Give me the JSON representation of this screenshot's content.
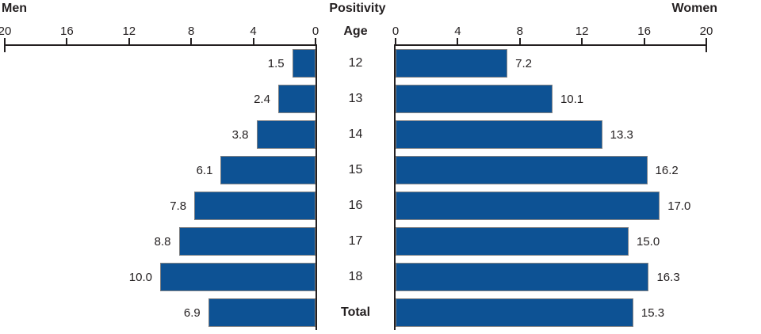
{
  "header": {
    "left": "Men",
    "center": "Positivity",
    "right": "Women"
  },
  "chart_data": {
    "type": "bar",
    "variant": "bilateral-pyramid",
    "title": "Positivity",
    "center_axis_label": "Age",
    "categories": [
      "12",
      "13",
      "14",
      "15",
      "16",
      "17",
      "18",
      "Total"
    ],
    "series": [
      {
        "name": "Men",
        "side": "left",
        "values": [
          1.5,
          2.4,
          3.8,
          6.1,
          7.8,
          8.8,
          10.0,
          6.9
        ]
      },
      {
        "name": "Women",
        "side": "right",
        "values": [
          7.2,
          10.1,
          13.3,
          16.2,
          17.0,
          15.0,
          16.3,
          15.3
        ]
      }
    ],
    "axis": {
      "min": 0,
      "max": 20,
      "ticks": [
        0,
        4,
        8,
        12,
        16,
        20
      ],
      "left_tick_order": [
        "20",
        "16",
        "12",
        "8",
        "4",
        "0"
      ],
      "right_tick_order": [
        "0",
        "4",
        "8",
        "12",
        "16",
        "20"
      ]
    },
    "value_label_decimals": 1,
    "colors": {
      "bar_fill": "#0d5294",
      "bar_border": "#808285",
      "axis": "#231f20",
      "text": "#231f20"
    },
    "legend_position": "none",
    "grid": false
  }
}
